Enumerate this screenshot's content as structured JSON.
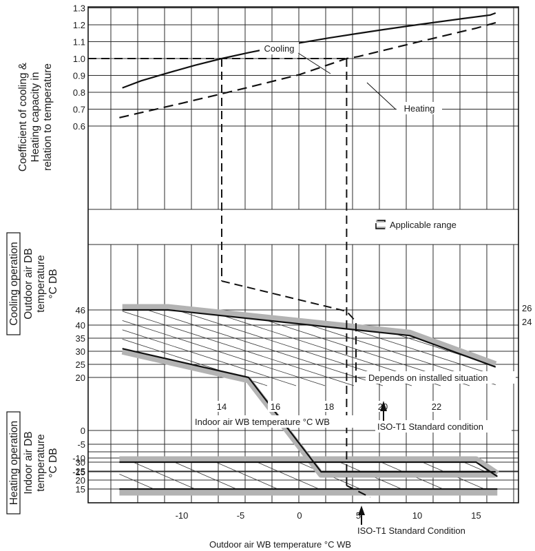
{
  "chart_data": [
    {
      "panel": "capacity-coefficient",
      "type": "line",
      "ylabel_lines": [
        "Coefficient of cooling &",
        "Heating capacity in",
        "relation to temperature"
      ],
      "yticks": [
        "1.3",
        "1.2",
        "1.1",
        "1.0",
        "0.9",
        "0.8",
        "0.7",
        "0.6"
      ],
      "ylim": [
        0.6,
        1.3
      ],
      "series": [
        {
          "name": "Cooling",
          "line": "solid",
          "x_axis": "Indoor air WB temperature °C WB",
          "x": [
            10.3,
            11,
            12,
            13,
            14,
            15,
            16,
            17,
            18,
            19,
            20,
            21,
            22,
            23,
            24,
            24.2
          ],
          "values": [
            0.826,
            0.868,
            0.915,
            0.96,
            1.0,
            1.035,
            1.066,
            1.095,
            1.122,
            1.147,
            1.171,
            1.194,
            1.216,
            1.237,
            1.258,
            1.27
          ]
        },
        {
          "name": "Heating",
          "line": "dashed",
          "x_axis": "Outdoor air WB temperature °C WB",
          "x": [
            -15.3,
            -10,
            -5,
            0,
            4,
            5,
            10,
            15,
            16.8
          ],
          "values": [
            0.65,
            0.735,
            0.818,
            0.905,
            1.0,
            1.012,
            1.097,
            1.18,
            1.215
          ]
        }
      ],
      "reference_lines": [
        {
          "value": 1.0,
          "indoor_wb": 14,
          "outdoor_wb": 4
        }
      ]
    },
    {
      "panel": "cooling-operation",
      "type": "area",
      "title": "Cooling operation",
      "ylabel_lines": [
        "Outdoor air DB",
        "temperature",
        "°C DB"
      ],
      "xlabel": "Indoor air WB temperature °C WB",
      "xticks": [
        "14",
        "16",
        "18",
        "20",
        "22"
      ],
      "yticks": [
        "46",
        "40",
        "35",
        "30",
        "25",
        "20",
        "0",
        "-5",
        "-10",
        "-15"
      ],
      "applicable_range_boundary": {
        "upper": {
          "x": [
            10.3,
            12.0,
            21.0,
            24.2
          ],
          "y": [
            46,
            46,
            36,
            24
          ]
        },
        "lower": {
          "x": [
            10.3,
            15.0,
            17.7,
            24.2
          ],
          "y": [
            31,
            20,
            -15,
            -15
          ]
        }
      },
      "right_labels": [
        "26",
        "24"
      ],
      "standard_condition": {
        "label": "ISO-T1 Standard condition",
        "indoor_wb": 19,
        "outdoor_db": 35
      },
      "note": "Depends on installed situation",
      "legend": "Applicable range"
    },
    {
      "panel": "heating-operation",
      "type": "area",
      "title": "Heating operation",
      "ylabel_lines": [
        "Indoor air DB",
        "temperature",
        "°C DB"
      ],
      "xlabel": "Outdoor air WB temperature °C WB",
      "xticks": [
        "-10",
        "-5",
        "0",
        "5",
        "10",
        "15"
      ],
      "yticks": [
        "30",
        "25",
        "20",
        "15"
      ],
      "applicable_range_boundary": {
        "upper": {
          "x": [
            -15.3,
            15.0,
            16.8
          ],
          "y": [
            30,
            30,
            22
          ]
        },
        "lower": {
          "x": [
            -15.3,
            16.8
          ],
          "y": [
            15,
            15
          ]
        }
      },
      "standard_condition": {
        "label": "ISO-T1 Standard Condition",
        "outdoor_wb": 6,
        "indoor_db": 20
      }
    }
  ]
}
